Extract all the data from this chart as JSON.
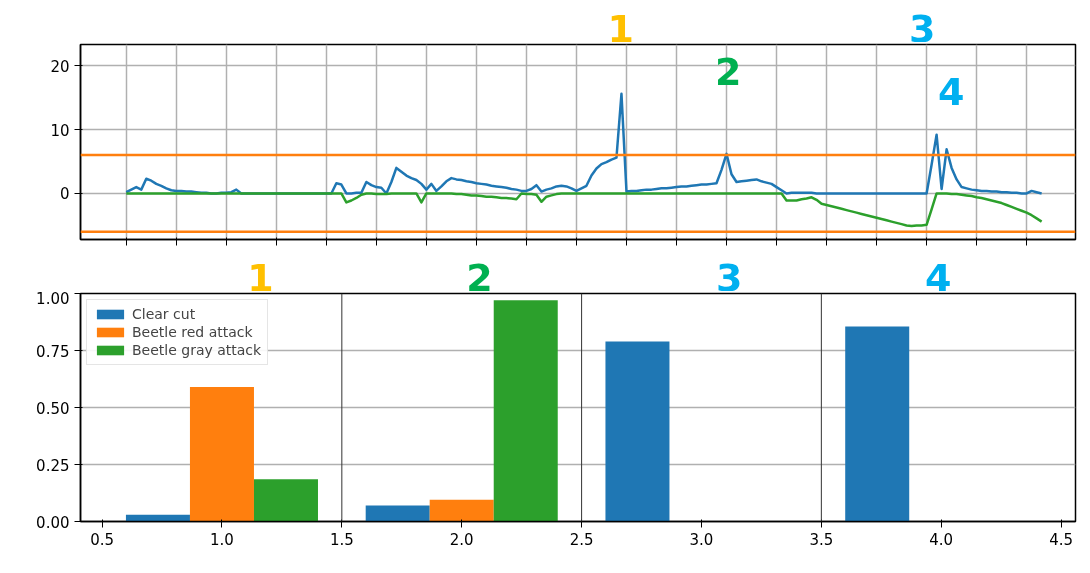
{
  "chart_data": [
    {
      "type": "line",
      "ylim": [
        -7.2,
        23.3
      ],
      "yticks": [
        0,
        10,
        20
      ],
      "grid": true,
      "tick_labels": "y",
      "categories": [
        null,
        null,
        null,
        null,
        null,
        null,
        null,
        null,
        null,
        null,
        null,
        null,
        null,
        null,
        null,
        null,
        null,
        null,
        null,
        null,
        null,
        null,
        null,
        null,
        null,
        null,
        null,
        null,
        null,
        null,
        null,
        null,
        null,
        null,
        null,
        null,
        null,
        null,
        null,
        null,
        null,
        null,
        null,
        null,
        null,
        null,
        null,
        null,
        null,
        null,
        null,
        null,
        null,
        null,
        null,
        null,
        null,
        null,
        null,
        null,
        null,
        null,
        null,
        null,
        null,
        null,
        null,
        null,
        null,
        null,
        null,
        null,
        null,
        null,
        null,
        null,
        null,
        null,
        null,
        null,
        null,
        null,
        null,
        null,
        null,
        null,
        null,
        null,
        null,
        null,
        null,
        null,
        null,
        null,
        null,
        null,
        null,
        null,
        null,
        null,
        null,
        null,
        null,
        null,
        null,
        null,
        null,
        null,
        null,
        null,
        null,
        null,
        null,
        null,
        null,
        null,
        null,
        null,
        null,
        null,
        null,
        null,
        null,
        null,
        null,
        null,
        null,
        null,
        null,
        null,
        null,
        null,
        null,
        null,
        null,
        null,
        null,
        null,
        null,
        null,
        null,
        null,
        null,
        null,
        null,
        null,
        null,
        null,
        null,
        null,
        null,
        null,
        null,
        null,
        null,
        null,
        null,
        null,
        null,
        null,
        null,
        null,
        null,
        null,
        null,
        null,
        null,
        null,
        null,
        null,
        null,
        null,
        null,
        null,
        null,
        null,
        null,
        null,
        null,
        null,
        null,
        null,
        null,
        null
      ],
      "series": [
        {
          "color": "#1f77b4",
          "values": [
            0.2,
            0.6,
            1.0,
            0.6,
            2.3,
            2.0,
            1.5,
            1.2,
            0.8,
            0.5,
            0.4,
            0.4,
            0.3,
            0.3,
            0.2,
            0.1,
            0.1,
            0,
            0,
            0.1,
            0.1,
            0.2,
            0.6,
            0,
            0,
            0,
            0,
            0,
            0,
            0,
            0,
            0,
            0,
            0,
            0,
            0,
            0,
            0,
            0,
            0,
            0,
            0,
            1.6,
            1.4,
            0,
            0,
            0.1,
            0.1,
            1.8,
            1.3,
            1.0,
            0.9,
            0,
            1.8,
            4.0,
            3.4,
            2.8,
            2.4,
            2.1,
            1.5,
            0.6,
            1.5,
            0.4,
            1.1,
            1.9,
            2.4,
            2.2,
            2.1,
            1.9,
            1.8,
            1.6,
            1.5,
            1.4,
            1.2,
            1.1,
            1.0,
            0.9,
            0.7,
            0.6,
            0.4,
            0.4,
            0.7,
            1.3,
            0.3,
            0.6,
            0.8,
            1.1,
            1.2,
            1.1,
            0.8,
            0.4,
            0.8,
            1.2,
            2.8,
            3.9,
            4.6,
            4.9,
            5.3,
            5.6,
            15.6,
            0.3,
            0.4,
            0.4,
            0.5,
            0.6,
            0.6,
            0.7,
            0.8,
            0.8,
            0.9,
            1.0,
            1.1,
            1.1,
            1.2,
            1.3,
            1.4,
            1.4,
            1.5,
            1.6,
            3.7,
            6.2,
            3.0,
            1.8,
            1.9,
            2.0,
            2.1,
            2.2,
            1.9,
            1.7,
            1.5,
            1.0,
            0.5,
            0,
            0.1,
            0.1,
            0.1,
            0.1,
            0.1,
            0,
            0,
            0,
            0,
            0,
            0,
            0,
            0,
            0,
            0,
            0,
            0,
            0,
            0,
            0,
            0,
            0,
            0,
            0,
            0,
            0,
            0,
            0,
            4.5,
            9.2,
            0.7,
            6.9,
            4.0,
            2.2,
            1.0,
            0.8,
            0.6,
            0.5,
            0.4,
            0.4,
            0.3,
            0.3,
            0.2,
            0.2,
            0.1,
            0.1,
            0,
            0,
            0.4,
            0.2,
            0
          ]
        },
        {
          "color": "#2ca02c",
          "values": [
            0,
            0,
            0,
            0,
            0,
            0,
            0,
            0,
            0,
            0,
            0,
            0,
            0,
            0,
            0,
            0,
            0,
            0,
            0,
            0,
            0,
            0,
            0,
            0,
            0,
            0,
            0,
            0,
            0,
            0,
            0,
            0,
            0,
            0,
            0,
            0,
            0,
            0,
            0,
            0,
            0,
            0,
            0,
            0,
            -1.4,
            -1.1,
            -0.7,
            -0.2,
            0,
            0,
            -0.1,
            -0.1,
            -0.1,
            0,
            0,
            0,
            0,
            0,
            0,
            -1.4,
            0,
            0,
            0,
            0,
            0,
            0,
            -0.1,
            -0.1,
            -0.2,
            -0.3,
            -0.3,
            -0.4,
            -0.5,
            -0.5,
            -0.6,
            -0.7,
            -0.7,
            -0.8,
            -0.9,
            0,
            -0.1,
            -0.1,
            -0.2,
            -1.3,
            -0.5,
            -0.3,
            -0.1,
            0,
            0,
            0,
            0,
            0,
            0,
            0,
            0,
            0,
            0,
            0,
            0,
            0,
            0,
            0,
            0,
            0,
            0,
            0,
            0,
            0,
            0,
            0,
            0,
            0,
            0,
            0,
            0,
            0,
            0,
            0,
            0,
            0,
            0,
            0,
            0,
            0,
            0,
            0,
            0,
            0,
            0,
            0,
            0,
            0,
            -1.1,
            -1.1,
            -1.1,
            -0.9,
            -0.8,
            -0.6,
            -1.0,
            -1.6,
            -1.8,
            -2.0,
            -2.2,
            -2.4,
            -2.6,
            -2.8,
            -3.0,
            -3.2,
            -3.4,
            -3.6,
            -3.8,
            -4.0,
            -4.2,
            -4.4,
            -4.6,
            -4.8,
            -5.0,
            -5.1,
            -5.0,
            -5.0,
            -4.9,
            -2.5,
            0,
            0,
            0,
            -0.1,
            -0.1,
            -0.2,
            -0.3,
            -0.4,
            -0.6,
            -0.7,
            -0.9,
            -1.1,
            -1.3,
            -1.5,
            -1.8,
            -2.1,
            -2.4,
            -2.7,
            -3.0,
            -3.4,
            -3.9,
            -4.4
          ]
        }
      ],
      "ref_lines": [
        {
          "axis": "y",
          "value": 6,
          "color": "#ff7f0e"
        },
        {
          "axis": "y",
          "value": -6,
          "color": "#ff7f0e"
        }
      ],
      "annotations": [
        "1",
        "2",
        "3",
        "4"
      ]
    },
    {
      "type": "bar",
      "xlim": [
        0.41,
        4.56
      ],
      "ylim": [
        0,
        1
      ],
      "xticks": [
        {
          "value": 0.5,
          "label": "0.5"
        },
        {
          "value": 1,
          "label": "1.0"
        },
        {
          "value": 1.5,
          "label": "1.5"
        },
        {
          "value": 2,
          "label": "2.0"
        },
        {
          "value": 2.5,
          "label": "2.5"
        },
        {
          "value": 3,
          "label": "3.0"
        },
        {
          "value": 3.5,
          "label": "3.5"
        },
        {
          "value": 4,
          "label": "4.0"
        },
        {
          "value": 4.5,
          "label": "4.5"
        }
      ],
      "yticks": [
        {
          "value": 0,
          "label": "0.00"
        },
        {
          "value": 0.25,
          "label": "0.25"
        },
        {
          "value": 0.5,
          "label": "0.50"
        },
        {
          "value": 0.75,
          "label": "0.75"
        },
        {
          "value": 1,
          "label": "1.00"
        }
      ],
      "grid": "y",
      "legend": "top left",
      "series": [
        {
          "name": "Clear cut",
          "color": "#1f77b4",
          "x": [
            0.733,
            1.733,
            2.733,
            3.733
          ],
          "values": [
            0.03,
            0.07,
            0.79,
            0.855
          ]
        },
        {
          "name": "Beetle red attack",
          "color": "#ff7f0e",
          "x": [
            1.0,
            2.0
          ],
          "values": [
            0.59,
            0.095
          ]
        },
        {
          "name": "Beetle gray attack",
          "color": "#2ca02c",
          "x": [
            1.267,
            2.267
          ],
          "values": [
            0.185,
            0.97
          ]
        }
      ],
      "ref_lines": [
        {
          "axis": "x",
          "value": 1.5,
          "color": "#333333"
        },
        {
          "axis": "x",
          "value": 2.5,
          "color": "#333333"
        },
        {
          "axis": "x",
          "value": 3.5,
          "color": "#333333"
        }
      ],
      "annotations": [
        "1",
        "2",
        "3",
        "4"
      ]
    }
  ]
}
